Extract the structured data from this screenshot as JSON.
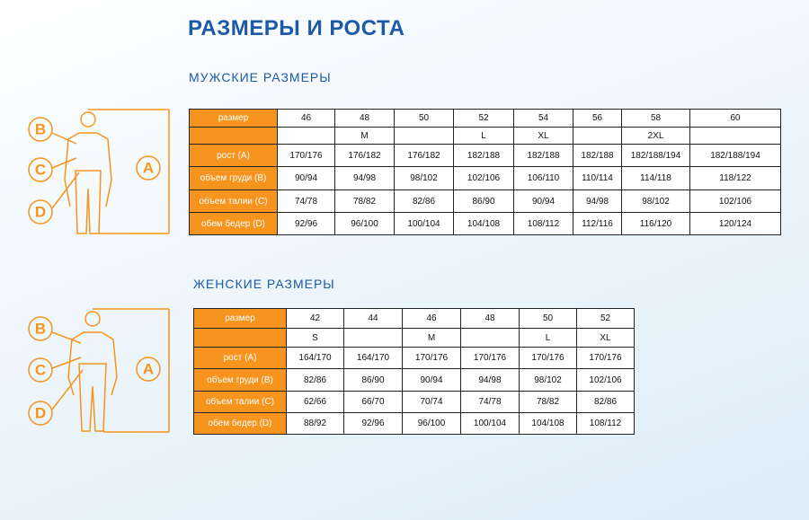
{
  "title": "РАЗМЕРЫ И РОСТА",
  "men": {
    "heading": "МУЖСКИЕ РАЗМЕРЫ",
    "rows": [
      [
        "размер",
        "46",
        "48",
        "50",
        "52",
        "54",
        "56",
        "58",
        "60"
      ],
      [
        null,
        null,
        "M",
        null,
        "L",
        "XL",
        null,
        "2XL",
        null
      ],
      [
        "рост (A)",
        "170/176",
        "176/182",
        "176/182",
        "182/188",
        "182/188",
        "182/188",
        "182/188/194",
        "182/188/194"
      ],
      [
        "объем груди (B)",
        "90/94",
        "94/98",
        "98/102",
        "102/106",
        "106/110",
        "110/114",
        "114/118",
        "118/122"
      ],
      [
        "объем талии (C)",
        "74/78",
        "78/82",
        "82/86",
        "86/90",
        "90/94",
        "94/98",
        "98/102",
        "102/106"
      ],
      [
        "обем бедер (D)",
        "92/96",
        "96/100",
        "100/104",
        "104/108",
        "108/112",
        "112/116",
        "116/120",
        "120/124"
      ]
    ]
  },
  "women": {
    "heading": "ЖЕНСКИЕ РАЗМЕРЫ",
    "rows": [
      [
        "размер",
        "42",
        "44",
        "46",
        "48",
        "50",
        "52"
      ],
      [
        null,
        "S",
        null,
        "M",
        null,
        "L",
        "XL"
      ],
      [
        "рост (A)",
        "164/170",
        "164/170",
        "170/176",
        "170/176",
        "170/176",
        "170/176"
      ],
      [
        "объем груди (B)",
        "82/86",
        "86/90",
        "90/94",
        "94/98",
        "98/102",
        "102/106"
      ],
      [
        "объем талии (C)",
        "62/66",
        "66/70",
        "70/74",
        "74/78",
        "78/82",
        "82/86"
      ],
      [
        "обем бедер (D)",
        "88/92",
        "92/96",
        "96/100",
        "100/104",
        "104/108",
        "108/112"
      ]
    ]
  },
  "figure": {
    "labels": [
      "B",
      "C",
      "D",
      "A"
    ]
  }
}
